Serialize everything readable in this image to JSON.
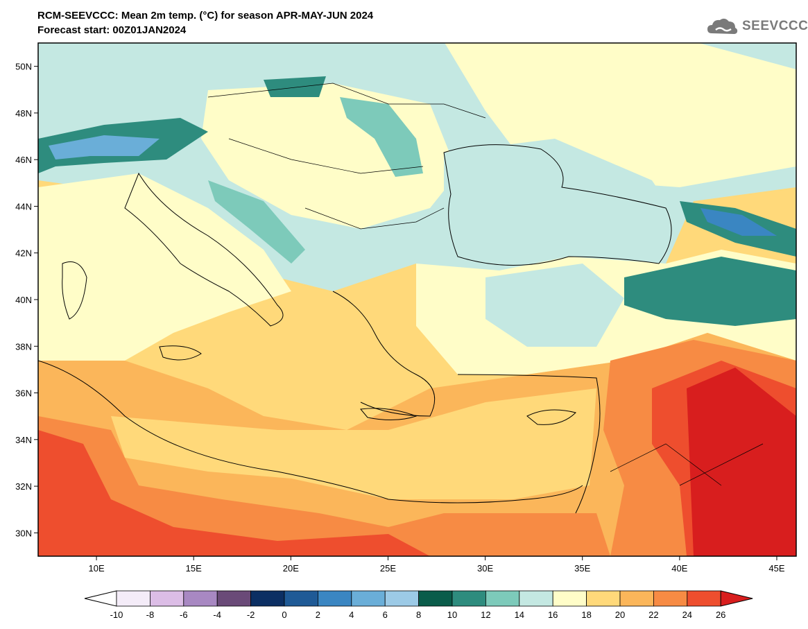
{
  "header": {
    "title_line1": "RCM-SEEVCCC: Mean 2m temp. (°C) for season APR-MAY-JUN 2024",
    "title_line2": "Forecast start: 00Z01JAN2024",
    "logo_text": "SEEVCCC"
  },
  "map": {
    "lat_ticks": [
      "50N",
      "48N",
      "46N",
      "44N",
      "42N",
      "40N",
      "38N",
      "36N",
      "34N",
      "32N",
      "30N"
    ],
    "lat_values": [
      50,
      48,
      46,
      44,
      42,
      40,
      38,
      36,
      34,
      32,
      30
    ],
    "lon_ticks": [
      "10E",
      "15E",
      "20E",
      "25E",
      "30E",
      "35E",
      "40E",
      "45E"
    ],
    "lon_values": [
      10,
      15,
      20,
      25,
      30,
      35,
      40,
      45
    ],
    "lon_range": [
      7,
      46
    ],
    "lat_range": [
      29,
      51
    ]
  },
  "colorbar": {
    "labels": [
      "-10",
      "-8",
      "-6",
      "-4",
      "-2",
      "0",
      "2",
      "4",
      "6",
      "8",
      "10",
      "12",
      "14",
      "16",
      "18",
      "20",
      "22",
      "24",
      "26"
    ],
    "colors": [
      "#f4ecf8",
      "#dcbde6",
      "#a888c2",
      "#6a4a78",
      "#0c2f63",
      "#1f5a96",
      "#3a86c2",
      "#6aaed8",
      "#9ccae6",
      "#0a5c4a",
      "#2e8c7e",
      "#7dcaba",
      "#c4e8e2",
      "#fffdc8",
      "#ffd97a",
      "#fbb65a",
      "#f78b44",
      "#ee4e2e"
    ],
    "under_color": "#ffffff",
    "over_color": "#d81e1e"
  }
}
